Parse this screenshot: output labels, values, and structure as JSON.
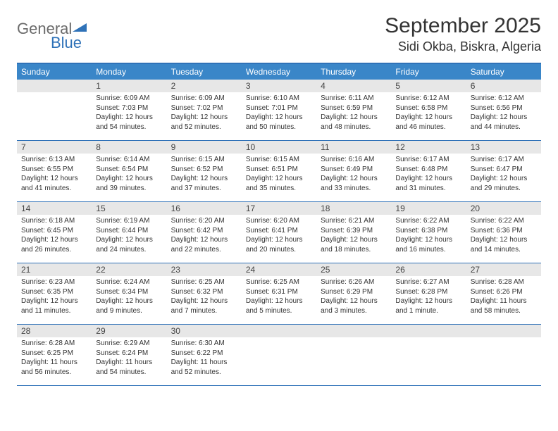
{
  "logo": {
    "general": "General",
    "blue": "Blue"
  },
  "title": "September 2025",
  "location": "Sidi Okba, Biskra, Algeria",
  "colors": {
    "header_bg": "#3a86c8",
    "border": "#2f72b8",
    "daynum_bg": "#e7e7e7",
    "text": "#333333",
    "logo_gray": "#6b6b6b",
    "logo_blue": "#2f72b8"
  },
  "day_names": [
    "Sunday",
    "Monday",
    "Tuesday",
    "Wednesday",
    "Thursday",
    "Friday",
    "Saturday"
  ],
  "weeks": [
    [
      {
        "blank": true
      },
      {
        "n": "1",
        "sr": "Sunrise: 6:09 AM",
        "ss": "Sunset: 7:03 PM",
        "d1": "Daylight: 12 hours",
        "d2": "and 54 minutes."
      },
      {
        "n": "2",
        "sr": "Sunrise: 6:09 AM",
        "ss": "Sunset: 7:02 PM",
        "d1": "Daylight: 12 hours",
        "d2": "and 52 minutes."
      },
      {
        "n": "3",
        "sr": "Sunrise: 6:10 AM",
        "ss": "Sunset: 7:01 PM",
        "d1": "Daylight: 12 hours",
        "d2": "and 50 minutes."
      },
      {
        "n": "4",
        "sr": "Sunrise: 6:11 AM",
        "ss": "Sunset: 6:59 PM",
        "d1": "Daylight: 12 hours",
        "d2": "and 48 minutes."
      },
      {
        "n": "5",
        "sr": "Sunrise: 6:12 AM",
        "ss": "Sunset: 6:58 PM",
        "d1": "Daylight: 12 hours",
        "d2": "and 46 minutes."
      },
      {
        "n": "6",
        "sr": "Sunrise: 6:12 AM",
        "ss": "Sunset: 6:56 PM",
        "d1": "Daylight: 12 hours",
        "d2": "and 44 minutes."
      }
    ],
    [
      {
        "n": "7",
        "sr": "Sunrise: 6:13 AM",
        "ss": "Sunset: 6:55 PM",
        "d1": "Daylight: 12 hours",
        "d2": "and 41 minutes."
      },
      {
        "n": "8",
        "sr": "Sunrise: 6:14 AM",
        "ss": "Sunset: 6:54 PM",
        "d1": "Daylight: 12 hours",
        "d2": "and 39 minutes."
      },
      {
        "n": "9",
        "sr": "Sunrise: 6:15 AM",
        "ss": "Sunset: 6:52 PM",
        "d1": "Daylight: 12 hours",
        "d2": "and 37 minutes."
      },
      {
        "n": "10",
        "sr": "Sunrise: 6:15 AM",
        "ss": "Sunset: 6:51 PM",
        "d1": "Daylight: 12 hours",
        "d2": "and 35 minutes."
      },
      {
        "n": "11",
        "sr": "Sunrise: 6:16 AM",
        "ss": "Sunset: 6:49 PM",
        "d1": "Daylight: 12 hours",
        "d2": "and 33 minutes."
      },
      {
        "n": "12",
        "sr": "Sunrise: 6:17 AM",
        "ss": "Sunset: 6:48 PM",
        "d1": "Daylight: 12 hours",
        "d2": "and 31 minutes."
      },
      {
        "n": "13",
        "sr": "Sunrise: 6:17 AM",
        "ss": "Sunset: 6:47 PM",
        "d1": "Daylight: 12 hours",
        "d2": "and 29 minutes."
      }
    ],
    [
      {
        "n": "14",
        "sr": "Sunrise: 6:18 AM",
        "ss": "Sunset: 6:45 PM",
        "d1": "Daylight: 12 hours",
        "d2": "and 26 minutes."
      },
      {
        "n": "15",
        "sr": "Sunrise: 6:19 AM",
        "ss": "Sunset: 6:44 PM",
        "d1": "Daylight: 12 hours",
        "d2": "and 24 minutes."
      },
      {
        "n": "16",
        "sr": "Sunrise: 6:20 AM",
        "ss": "Sunset: 6:42 PM",
        "d1": "Daylight: 12 hours",
        "d2": "and 22 minutes."
      },
      {
        "n": "17",
        "sr": "Sunrise: 6:20 AM",
        "ss": "Sunset: 6:41 PM",
        "d1": "Daylight: 12 hours",
        "d2": "and 20 minutes."
      },
      {
        "n": "18",
        "sr": "Sunrise: 6:21 AM",
        "ss": "Sunset: 6:39 PM",
        "d1": "Daylight: 12 hours",
        "d2": "and 18 minutes."
      },
      {
        "n": "19",
        "sr": "Sunrise: 6:22 AM",
        "ss": "Sunset: 6:38 PM",
        "d1": "Daylight: 12 hours",
        "d2": "and 16 minutes."
      },
      {
        "n": "20",
        "sr": "Sunrise: 6:22 AM",
        "ss": "Sunset: 6:36 PM",
        "d1": "Daylight: 12 hours",
        "d2": "and 14 minutes."
      }
    ],
    [
      {
        "n": "21",
        "sr": "Sunrise: 6:23 AM",
        "ss": "Sunset: 6:35 PM",
        "d1": "Daylight: 12 hours",
        "d2": "and 11 minutes."
      },
      {
        "n": "22",
        "sr": "Sunrise: 6:24 AM",
        "ss": "Sunset: 6:34 PM",
        "d1": "Daylight: 12 hours",
        "d2": "and 9 minutes."
      },
      {
        "n": "23",
        "sr": "Sunrise: 6:25 AM",
        "ss": "Sunset: 6:32 PM",
        "d1": "Daylight: 12 hours",
        "d2": "and 7 minutes."
      },
      {
        "n": "24",
        "sr": "Sunrise: 6:25 AM",
        "ss": "Sunset: 6:31 PM",
        "d1": "Daylight: 12 hours",
        "d2": "and 5 minutes."
      },
      {
        "n": "25",
        "sr": "Sunrise: 6:26 AM",
        "ss": "Sunset: 6:29 PM",
        "d1": "Daylight: 12 hours",
        "d2": "and 3 minutes."
      },
      {
        "n": "26",
        "sr": "Sunrise: 6:27 AM",
        "ss": "Sunset: 6:28 PM",
        "d1": "Daylight: 12 hours",
        "d2": "and 1 minute."
      },
      {
        "n": "27",
        "sr": "Sunrise: 6:28 AM",
        "ss": "Sunset: 6:26 PM",
        "d1": "Daylight: 11 hours",
        "d2": "and 58 minutes."
      }
    ],
    [
      {
        "n": "28",
        "sr": "Sunrise: 6:28 AM",
        "ss": "Sunset: 6:25 PM",
        "d1": "Daylight: 11 hours",
        "d2": "and 56 minutes."
      },
      {
        "n": "29",
        "sr": "Sunrise: 6:29 AM",
        "ss": "Sunset: 6:24 PM",
        "d1": "Daylight: 11 hours",
        "d2": "and 54 minutes."
      },
      {
        "n": "30",
        "sr": "Sunrise: 6:30 AM",
        "ss": "Sunset: 6:22 PM",
        "d1": "Daylight: 11 hours",
        "d2": "and 52 minutes."
      },
      {
        "blank": true
      },
      {
        "blank": true
      },
      {
        "blank": true
      },
      {
        "blank": true
      }
    ]
  ]
}
